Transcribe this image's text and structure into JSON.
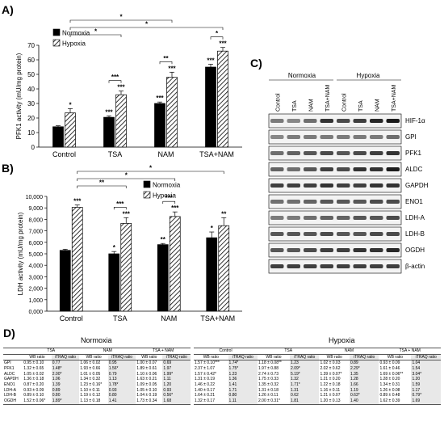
{
  "panels": {
    "a": "A)",
    "b": "B)",
    "c": "C)",
    "d": "D)"
  },
  "chart_data": [
    {
      "type": "bar",
      "title": "",
      "xlabel": "",
      "ylabel": "PFK1 activity (mU/mg protein)",
      "ylim": [
        0,
        70
      ],
      "yticks": [
        "0",
        "10",
        "20",
        "30",
        "40",
        "50",
        "60",
        "70"
      ],
      "categories": [
        "Control",
        "TSA",
        "NAM",
        "TSA+NAM"
      ],
      "series": [
        {
          "name": "Normoxia",
          "values": [
            14,
            20.5,
            30,
            55
          ],
          "errors": [
            0.7,
            1,
            1,
            2
          ],
          "pattern": "solid"
        },
        {
          "name": "Hypoxia",
          "values": [
            23.5,
            36,
            48,
            66
          ],
          "errors": [
            3,
            2.5,
            3.5,
            2.5
          ],
          "pattern": "hatched"
        }
      ],
      "bar_marks": [
        [
          "",
          "*"
        ],
        [
          "***",
          "***"
        ],
        [
          "***",
          "***"
        ],
        [
          "***",
          "***"
        ]
      ],
      "brackets": [
        {
          "from": 1,
          "to": 3,
          "series_from": 1,
          "series_to": 1,
          "label": "*",
          "level": 5
        },
        {
          "from": 1,
          "to": 4,
          "series_from": 1,
          "series_to": 1,
          "label": "*",
          "level": 4
        },
        {
          "from": 1,
          "to": 2,
          "series_from": 1,
          "series_to": 1,
          "label": "*",
          "level": 3
        },
        {
          "from": 2,
          "to": 2,
          "series_from": 0,
          "series_to": 1,
          "label": "***",
          "level": 0
        },
        {
          "from": 3,
          "to": 3,
          "series_from": 0,
          "series_to": 1,
          "label": "**",
          "level": 0
        },
        {
          "from": 4,
          "to": 4,
          "series_from": 0,
          "series_to": 1,
          "label": "*",
          "level": 0
        }
      ],
      "legend": "top-left"
    },
    {
      "type": "bar",
      "title": "",
      "xlabel": "",
      "ylabel": "LDH activity (mU/mg protein)",
      "ylim": [
        0,
        10
      ],
      "yticks": [
        "0,000",
        "1,000",
        "2,000",
        "3,000",
        "4,000",
        "5,000",
        "6,000",
        "7,000",
        "8,000",
        "9,000",
        "10,000"
      ],
      "categories": [
        "Control",
        "TSA",
        "NAM",
        "TSA+NAM"
      ],
      "series": [
        {
          "name": "Normoxia",
          "values": [
            5.3,
            5.0,
            5.8,
            6.4
          ],
          "errors": [
            0.1,
            0.2,
            0.1,
            0.5
          ],
          "pattern": "solid"
        },
        {
          "name": "Hypoxia",
          "values": [
            9.05,
            7.65,
            8.25,
            7.45
          ],
          "errors": [
            0.2,
            0.5,
            0.4,
            0.7
          ],
          "pattern": "hatched"
        }
      ],
      "bar_marks": [
        [
          "",
          "***"
        ],
        [
          "*",
          "***"
        ],
        [
          "**",
          "***"
        ],
        [
          "*",
          "**"
        ]
      ],
      "brackets": [
        {
          "from": 1,
          "to": 4,
          "series_from": 1,
          "series_to": 1,
          "label": "*",
          "level": 5
        },
        {
          "from": 1,
          "to": 3,
          "series_from": 1,
          "series_to": 1,
          "label": "*",
          "level": 4
        },
        {
          "from": 1,
          "to": 2,
          "series_from": 1,
          "series_to": 1,
          "label": "**",
          "level": 3
        },
        {
          "from": 2,
          "to": 2,
          "series_from": 0,
          "series_to": 1,
          "label": "***",
          "level": 0
        },
        {
          "from": 3,
          "to": 3,
          "series_from": 0,
          "series_to": 1,
          "label": "***",
          "level": 0
        }
      ],
      "legend": "top-right"
    }
  ],
  "western_blot": {
    "group_labels": [
      "Normoxia",
      "Hypoxia"
    ],
    "lane_labels": [
      "Control",
      "TSA",
      "NAM",
      "TSA+NAM",
      "Control",
      "TSA",
      "NAM",
      "TSA+NAM"
    ],
    "rows": [
      {
        "label": "HIF-1α",
        "intensity": [
          0.55,
          0.5,
          0.6,
          0.85,
          0.75,
          0.8,
          0.9,
          0.95
        ]
      },
      {
        "label": "GPI",
        "intensity": [
          0.5,
          0.55,
          0.55,
          0.55,
          0.55,
          0.55,
          0.55,
          0.6
        ]
      },
      {
        "label": "PFK1",
        "intensity": [
          0.6,
          0.65,
          0.7,
          0.75,
          0.7,
          0.75,
          0.8,
          0.85
        ]
      },
      {
        "label": "ALDC",
        "intensity": [
          0.65,
          0.6,
          0.7,
          0.8,
          0.75,
          0.85,
          0.85,
          0.95
        ]
      },
      {
        "label": "GAPDH",
        "intensity": [
          0.8,
          0.8,
          0.8,
          0.85,
          0.8,
          0.8,
          0.85,
          0.85
        ]
      },
      {
        "label": "ENO1",
        "intensity": [
          0.6,
          0.6,
          0.65,
          0.7,
          0.7,
          0.7,
          0.75,
          0.75
        ]
      },
      {
        "label": "LDH-A",
        "intensity": [
          0.55,
          0.55,
          0.6,
          0.65,
          0.65,
          0.7,
          0.7,
          0.75
        ]
      },
      {
        "label": "LDH-B",
        "intensity": [
          0.7,
          0.7,
          0.7,
          0.75,
          0.7,
          0.7,
          0.75,
          0.75
        ]
      },
      {
        "label": "OGDH",
        "intensity": [
          0.7,
          0.7,
          0.75,
          0.8,
          0.8,
          0.85,
          0.85,
          0.9
        ]
      },
      {
        "label": "β-actin",
        "intensity": [
          0.8,
          0.8,
          0.8,
          0.8,
          0.8,
          0.8,
          0.8,
          0.8
        ]
      }
    ]
  },
  "results_table": {
    "normoxia_title": "Normoxia",
    "hypoxia_title": "Hypoxia",
    "normoxia_groups": [
      "TSA",
      "NAM",
      "TSA + NAM"
    ],
    "hypoxia_groups": [
      "Control",
      "TSA",
      "NAM",
      "TSA + NAM"
    ],
    "subheaders": [
      "WB ratio",
      "iTRAQ ratio"
    ],
    "proteins": [
      "GPI",
      "PFK1",
      "ALDC",
      "GAPDH",
      "ENO1",
      "LDH-A",
      "LDH-B",
      "OGDH"
    ],
    "normoxia_rows": [
      [
        "0.95 ± 0.10",
        "0.77",
        "1.06 ± 0.02",
        "0.95",
        "1.00 ± 0.07",
        "0.69"
      ],
      [
        "1.32 ± 0.65",
        "1.48*",
        "1.93 ± 0.66",
        "1.56*",
        "1.89 ± 0.61",
        "1.97"
      ],
      [
        "1.05 ± 0.02",
        "2.00*",
        "1.01 ± 0.05",
        "0.79",
        "1.10 ± 0.06",
        "1.99*"
      ],
      [
        "1.36 ± 0.18",
        "1.06",
        "1.34 ± 0.32",
        "1.13",
        "1.63 ± 0.21",
        "1.11"
      ],
      [
        "0.87 ± 0.20",
        "1.39",
        "1.23 ± 0.16*",
        "1.78*",
        "1.09 ± 0.05",
        "1.20"
      ],
      [
        "0.93 ± 0.09",
        "0.89",
        "1.10 ± 0.11",
        "0.93",
        "1.05 ± 0.10",
        "0.93"
      ],
      [
        "0.89 ± 0.10",
        "0.80",
        "1.19 ± 0.12",
        "0.80",
        "1.04 ± 0.19",
        "0.56*"
      ],
      [
        "1.52 ± 0.06*",
        "1.89*",
        "1.13 ± 0.18",
        "1.41",
        "1.73 ± 0.34",
        "1.68"
      ]
    ],
    "hypoxia_rows": [
      [
        "1.57 ± 0.10***",
        "1.74*",
        "1.18 ± 0.08**",
        "1.23",
        "1.02 ± 0.03",
        "0.89",
        "0.93 ± 0.09",
        "1.04"
      ],
      [
        "2.37 ± 1.07",
        "1.75*",
        "1.97 ± 0.88",
        "2.09*",
        "2.02 ± 0.62",
        "2.29*",
        "1.61 ± 0.46",
        "1.54"
      ],
      [
        "1.57 ± 0.42*",
        "1.23",
        "2.74 ± 0.73",
        "5.19*",
        "1.39 ± 0.07*",
        "1.35",
        "1.69 ± 0.06**",
        "3.04*"
      ],
      [
        "1.31 ± 0.19",
        "1.36",
        "1.75 ± 0.33",
        "1.32",
        "1.21 ± 0.20",
        "1.28",
        "1.28 ± 0.20",
        "1.20"
      ],
      [
        "1.46 ± 0.22",
        "1.41",
        "1.35 ± 0.32",
        "1.71*",
        "1.22 ± 0.18",
        "1.66",
        "1.34 ± 0.31",
        "1.59"
      ],
      [
        "1.40 ± 0.17",
        "1.71",
        "1.31 ± 0.18",
        "1.31",
        "1.16 ± 0.11",
        "1.19",
        "1.26 ± 0.08",
        "1.17"
      ],
      [
        "1.64 ± 0.21",
        "0.80",
        "1.26 ± 0.11",
        "0.62",
        "1.21 ± 0.07",
        "0.63*",
        "0.89 ± 0.48",
        "0.79*"
      ],
      [
        "1.32 ± 0.17",
        "1.11",
        "2.00 ± 0.31*",
        "1.81",
        "1.20 ± 0.13",
        "1.40",
        "1.62 ± 0.39",
        "1.69"
      ]
    ]
  }
}
